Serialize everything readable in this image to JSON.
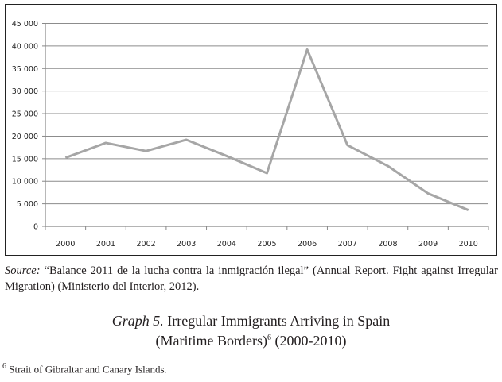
{
  "chart_data": {
    "type": "line",
    "categories": [
      "2000",
      "2001",
      "2002",
      "2003",
      "2004",
      "2005",
      "2006",
      "2007",
      "2008",
      "2009",
      "2010"
    ],
    "series": [
      {
        "values": [
          15200,
          18500,
          16700,
          19200,
          15600,
          11800,
          39200,
          18000,
          13400,
          7300,
          3600
        ]
      }
    ],
    "ylim": [
      0,
      45000
    ],
    "yticks": [
      "0",
      "5 000",
      "10 000",
      "15 000",
      "20 000",
      "25 000",
      "30 000",
      "35 000",
      "40 000",
      "45 000"
    ],
    "grid": true,
    "line_color": "#a6a6a6"
  },
  "source": {
    "label": "Source:",
    "text": " “Balance 2011 de la lucha contra la inmigración ilegal” (Annual Report. Fight against Irregular Migration) (Ministerio del Interior, 2012)."
  },
  "caption": {
    "label": "Graph 5.",
    "line1": " Irregular Immigrants Arriving in Spain",
    "line2a": "(Maritime Borders)",
    "note_ref": "6",
    "line2b": " (2000-2010)"
  },
  "footnote": {
    "mark": "6",
    "text": " Strait of Gibraltar and Canary Islands."
  }
}
